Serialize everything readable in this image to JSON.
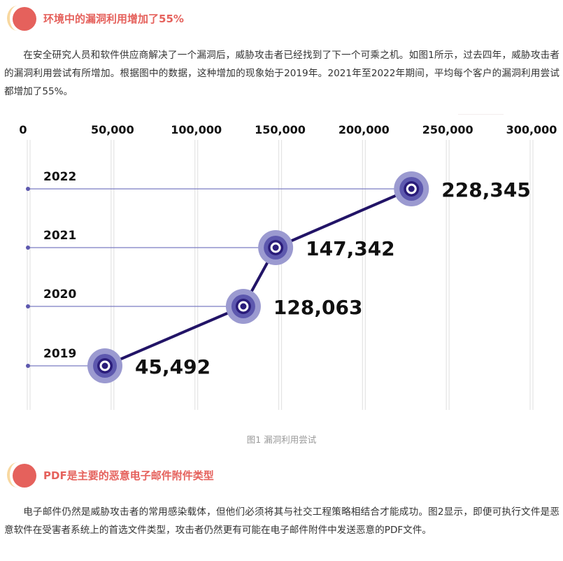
{
  "section1": {
    "title": "环境中的漏洞利用增加了55%",
    "paragraph": "在安全研究人员和软件供应商解决了一个漏洞后，威胁攻击者已经找到了下一个可乘之机。如图1所示，过去四年，威胁攻击者的漏洞利用尝试有所增加。根据图中的数据，这种增加的现象始于2019年。2021年至2022年期间，平均每个客户的漏洞利用尝试都增加了55%。"
  },
  "figure": {
    "caption": "图1 漏洞利用尝试"
  },
  "chart_data": {
    "type": "line",
    "categories": [
      "2019",
      "2020",
      "2021",
      "2022"
    ],
    "values": [
      45492,
      128063,
      147342,
      228345
    ],
    "value_labels": [
      "45,492",
      "128,063",
      "147,342",
      "228,345"
    ],
    "x_ticks": [
      "0",
      "50,000",
      "100,000",
      "150,000",
      "200,000",
      "250,000",
      "300,000"
    ],
    "x_tick_values": [
      0,
      50000,
      100000,
      150000,
      200000,
      250000,
      300000
    ],
    "xlim": [
      0,
      300000
    ],
    "title": "",
    "xlabel": "",
    "ylabel": "",
    "grid": true,
    "colors": {
      "line": "#221467",
      "marker_outer": "#9b9ad0",
      "marker_mid": "#5d58ae",
      "marker_inner": "#2a1c7a",
      "guide": "#7b7cc2",
      "grid": "#e4e4e4",
      "text": "#111111"
    }
  },
  "section2": {
    "title": "PDF是主要的恶意电子邮件附件类型",
    "paragraph": "电子邮件仍然是威胁攻击者的常用感染载体，但他们必须将其与社交工程策略相结合才能成功。图2显示，即便可执行文件是恶意软件在受害者系统上的首选文件类型，攻击者仍然更有可能在电子邮件附件中发送恶意的PDF文件。"
  }
}
